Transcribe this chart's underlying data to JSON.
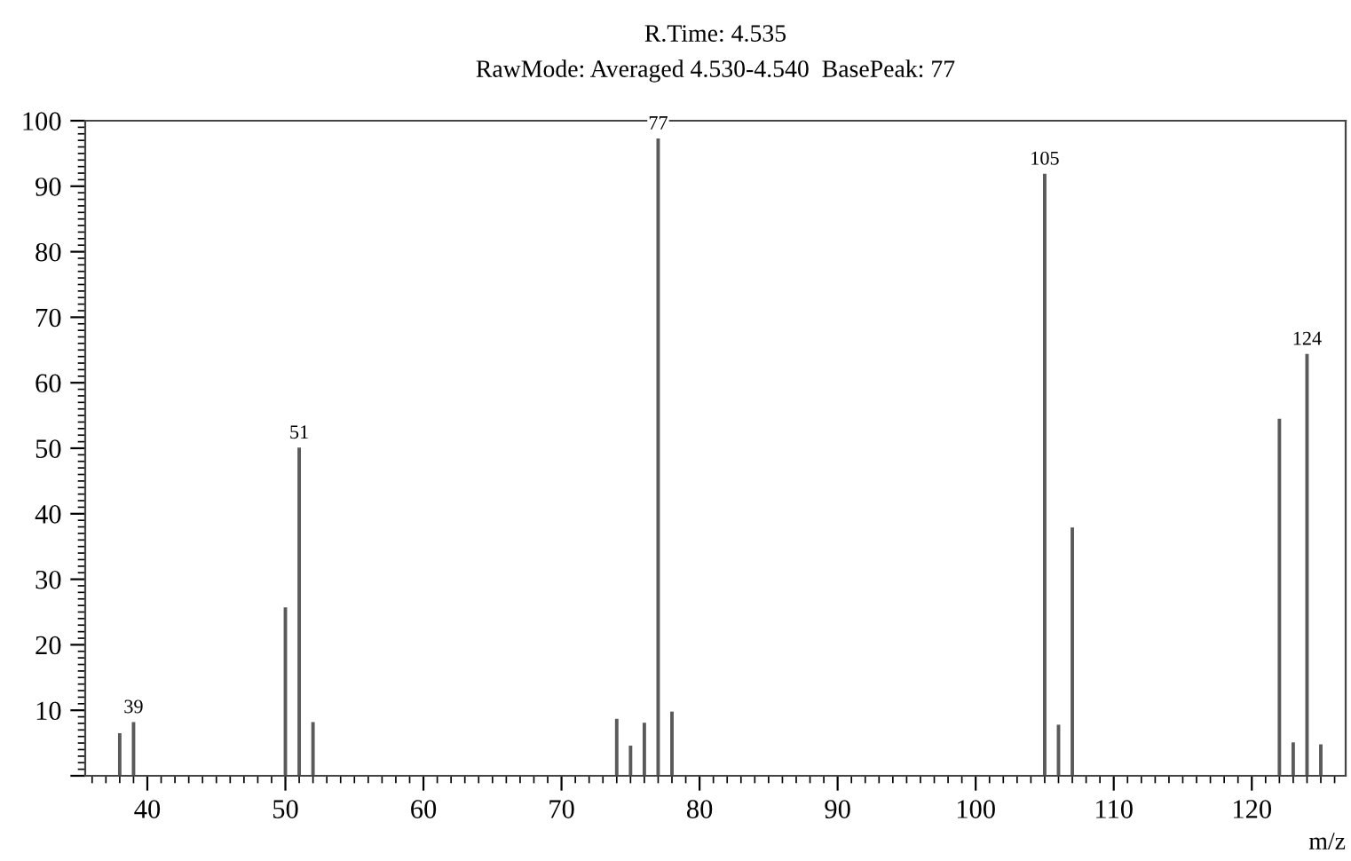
{
  "chart_data": {
    "type": "bar",
    "title": "R.Time: 4.535",
    "subtitle": "RawMode: Averaged 4.530-4.540  BasePeak: 77",
    "xlabel": "m/z",
    "x": [
      38,
      39,
      50,
      51,
      52,
      74,
      75,
      76,
      77,
      78,
      105,
      106,
      107,
      122,
      123,
      124,
      125
    ],
    "values": [
      6.5,
      8.2,
      25.7,
      50.1,
      8.2,
      8.7,
      4.6,
      8.1,
      97.3,
      9.8,
      91.9,
      7.8,
      37.9,
      54.5,
      5.1,
      64.4,
      4.8
    ],
    "color": "#5a5a5a",
    "xlim": [
      35.5,
      126.8
    ],
    "ylim": [
      0,
      100
    ],
    "xticks": [
      40,
      50,
      60,
      70,
      80,
      90,
      100,
      110,
      120
    ],
    "yticks": [
      {
        "value": 0,
        "label": null
      },
      10,
      20,
      30,
      40,
      50,
      60,
      70,
      80,
      90,
      100
    ],
    "annotations": [
      {
        "text": "39",
        "x": 39,
        "y": 8.2
      },
      {
        "text": "51",
        "x": 51,
        "y": 50.1
      },
      {
        "text": "77",
        "x": 77,
        "y": 97.3
      },
      {
        "text": "105",
        "x": 105,
        "y": 91.9
      },
      {
        "text": "124",
        "x": 124,
        "y": 64.4
      }
    ],
    "grid": false,
    "legend": false
  }
}
